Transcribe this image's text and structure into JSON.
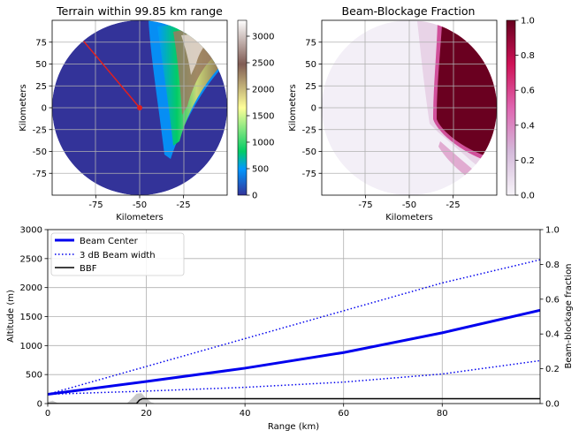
{
  "chart_data": [
    {
      "type": "heatmap",
      "title": "Terrain within 99.85 km range",
      "xlabel": "Kilometers",
      "ylabel": "Kilometers",
      "xlim": [
        -100,
        0
      ],
      "ylim": [
        -100,
        100
      ],
      "xticks": [
        "-75",
        "-50",
        "-25"
      ],
      "yticks": [
        "75",
        "50",
        "25",
        "0",
        "-25",
        "-50",
        "-75"
      ],
      "radar_site": [
        -50,
        0
      ],
      "beam_line": {
        "from": [
          -50,
          0
        ],
        "to": [
          -82,
          76
        ],
        "color": "#e02020"
      },
      "colorbar": {
        "min": 0,
        "max": 3300,
        "ticks": [
          "0",
          "500",
          "1000",
          "1500",
          "2000",
          "2500",
          "3000"
        ],
        "colormap": "terrain"
      }
    },
    {
      "type": "heatmap",
      "title": "Beam-Blockage Fraction",
      "xlabel": "Kilometers",
      "ylabel": "Kilometers",
      "xlim": [
        -100,
        0
      ],
      "ylim": [
        -100,
        100
      ],
      "xticks": [
        "-75",
        "-50",
        "-25"
      ],
      "yticks": [
        "75",
        "50",
        "25",
        "0",
        "-25",
        "-50",
        "-75"
      ],
      "colorbar": {
        "min": 0,
        "max": 1,
        "ticks": [
          "0.0",
          "0.2",
          "0.4",
          "0.6",
          "0.8",
          "1.0"
        ],
        "colormap": "PuRd"
      }
    },
    {
      "type": "line",
      "xlabel": "Range (km)",
      "ylabel": "Altitude (m)",
      "y2label": "Beam-blockage fraction",
      "xlim": [
        0,
        99.85
      ],
      "ylim": [
        0,
        3000
      ],
      "y2lim": [
        0,
        1
      ],
      "xticks": [
        "0",
        "20",
        "40",
        "60",
        "80"
      ],
      "yticks": [
        "0",
        "500",
        "1000",
        "1500",
        "2000",
        "2500",
        "3000"
      ],
      "y2ticks": [
        "0.0",
        "0.2",
        "0.4",
        "0.6",
        "0.8",
        "1.0"
      ],
      "legend_position": "top-left",
      "grid": true,
      "series": [
        {
          "name": "Beam Center",
          "color": "#0000ee",
          "style": "solid",
          "x": [
            0,
            20,
            40,
            60,
            80,
            99.85
          ],
          "y": [
            160,
            380,
            610,
            880,
            1220,
            1610
          ]
        },
        {
          "name": "3 dB Beam width",
          "color": "#0000ee",
          "style": "dotted",
          "x": [
            0,
            20,
            40,
            60,
            80,
            99.85
          ],
          "y": [
            160,
            640,
            1120,
            1600,
            2080,
            2480
          ]
        },
        {
          "name": "",
          "color": "#0000ee",
          "style": "dotted",
          "x": [
            0,
            20,
            40,
            60,
            80,
            99.85
          ],
          "y": [
            160,
            215,
            280,
            370,
            510,
            740
          ]
        },
        {
          "name": "BBF",
          "color": "#000000",
          "style": "solid",
          "axis": "right",
          "x": [
            0,
            18,
            18.6,
            19.2,
            99.85
          ],
          "y": [
            0,
            0,
            0.02,
            0.028,
            0.028
          ]
        }
      ],
      "terrain_profile": {
        "color": "#c8c8c8",
        "x": [
          0,
          1,
          2,
          4,
          16,
          17,
          18,
          19,
          20,
          21,
          22
        ],
        "y": [
          30,
          50,
          10,
          0,
          0,
          80,
          170,
          180,
          90,
          20,
          0
        ]
      }
    }
  ]
}
